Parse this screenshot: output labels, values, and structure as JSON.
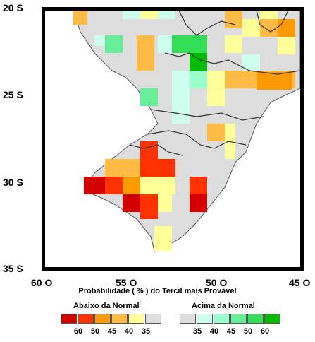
{
  "map": {
    "y_axis_labels": [
      "20 S",
      "25 S",
      "30 S",
      "35 S"
    ],
    "x_axis_labels": [
      "60 O",
      "55 O",
      "50 O",
      "45 O"
    ],
    "caption": "Probabilidade ( % ) do Tercil mais Provável"
  },
  "legend": {
    "below": {
      "title": "Abaixo da Normal",
      "colors": [
        "#d40000",
        "#ff3300",
        "#ff9900",
        "#ffbb44",
        "#ffff99",
        "#dddddd"
      ],
      "ticks": [
        "60",
        "50",
        "45",
        "40",
        "35"
      ]
    },
    "above": {
      "title": "Acima da Normal",
      "colors": [
        "#dddddd",
        "#ccffee",
        "#99ffcc",
        "#66ee99",
        "#33dd55",
        "#00bb00"
      ],
      "ticks": [
        "35",
        "40",
        "45",
        "50",
        "60"
      ]
    }
  }
}
